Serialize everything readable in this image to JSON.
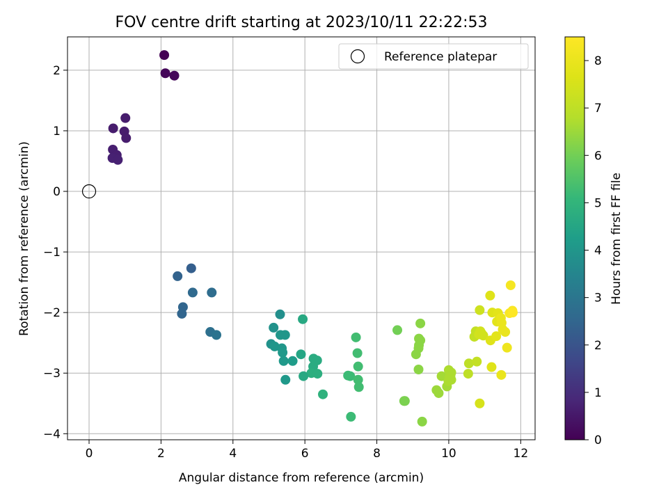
{
  "chart_data": {
    "type": "scatter",
    "title": "FOV centre drift starting at 2023/10/11 22:22:53",
    "xlabel": "Angular distance from reference (arcmin)",
    "ylabel": "Rotation from reference (arcmin)",
    "xlim": [
      -0.6,
      12.4
    ],
    "ylim": [
      -4.1,
      2.55
    ],
    "x_ticks": [
      0,
      2,
      4,
      6,
      8,
      10,
      12
    ],
    "y_ticks": [
      -4,
      -3,
      -2,
      -1,
      0,
      1,
      2
    ],
    "grid": true,
    "legend": {
      "placement": "top-right",
      "entries": [
        "Reference platepar"
      ]
    },
    "reference_point": {
      "x": 0,
      "y": 0
    },
    "colorbar": {
      "label": "Hours from first FF file",
      "colormap": "viridis",
      "range": [
        0,
        8.5
      ],
      "ticks": [
        0,
        1,
        2,
        3,
        4,
        5,
        6,
        7,
        8
      ]
    },
    "points": [
      {
        "x": 2.09,
        "y": 2.25,
        "h": 0.0
      },
      {
        "x": 2.12,
        "y": 1.95,
        "h": 0.1
      },
      {
        "x": 2.37,
        "y": 1.91,
        "h": 0.15
      },
      {
        "x": 1.01,
        "y": 1.21,
        "h": 0.6
      },
      {
        "x": 0.67,
        "y": 1.04,
        "h": 0.6
      },
      {
        "x": 0.98,
        "y": 0.99,
        "h": 0.6
      },
      {
        "x": 1.03,
        "y": 0.88,
        "h": 0.6
      },
      {
        "x": 0.66,
        "y": 0.69,
        "h": 0.65
      },
      {
        "x": 0.77,
        "y": 0.6,
        "h": 0.65
      },
      {
        "x": 0.65,
        "y": 0.55,
        "h": 0.7
      },
      {
        "x": 0.8,
        "y": 0.52,
        "h": 0.7
      },
      {
        "x": 2.84,
        "y": -1.27,
        "h": 2.3
      },
      {
        "x": 2.46,
        "y": -1.4,
        "h": 2.4
      },
      {
        "x": 2.88,
        "y": -1.67,
        "h": 2.6
      },
      {
        "x": 3.41,
        "y": -1.67,
        "h": 2.7
      },
      {
        "x": 2.61,
        "y": -1.91,
        "h": 2.5
      },
      {
        "x": 2.58,
        "y": -2.02,
        "h": 2.5
      },
      {
        "x": 3.37,
        "y": -2.32,
        "h": 2.8
      },
      {
        "x": 3.54,
        "y": -2.37,
        "h": 2.9
      },
      {
        "x": 5.31,
        "y": -2.03,
        "h": 3.8
      },
      {
        "x": 5.13,
        "y": -2.25,
        "h": 3.9
      },
      {
        "x": 5.32,
        "y": -2.37,
        "h": 4.0
      },
      {
        "x": 5.45,
        "y": -2.37,
        "h": 4.0
      },
      {
        "x": 5.06,
        "y": -2.52,
        "h": 3.9
      },
      {
        "x": 5.16,
        "y": -2.56,
        "h": 4.0
      },
      {
        "x": 5.36,
        "y": -2.59,
        "h": 4.0
      },
      {
        "x": 5.38,
        "y": -2.66,
        "h": 4.1
      },
      {
        "x": 5.41,
        "y": -2.8,
        "h": 4.1
      },
      {
        "x": 5.66,
        "y": -2.8,
        "h": 4.2
      },
      {
        "x": 5.46,
        "y": -3.11,
        "h": 4.1
      },
      {
        "x": 5.94,
        "y": -2.11,
        "h": 4.6
      },
      {
        "x": 5.89,
        "y": -2.69,
        "h": 4.5
      },
      {
        "x": 6.24,
        "y": -2.76,
        "h": 4.7
      },
      {
        "x": 6.34,
        "y": -2.79,
        "h": 4.7
      },
      {
        "x": 6.23,
        "y": -2.89,
        "h": 4.7
      },
      {
        "x": 6.18,
        "y": -3.0,
        "h": 4.8
      },
      {
        "x": 6.35,
        "y": -3.01,
        "h": 4.8
      },
      {
        "x": 5.96,
        "y": -3.05,
        "h": 4.6
      },
      {
        "x": 6.5,
        "y": -3.35,
        "h": 4.9
      },
      {
        "x": 7.42,
        "y": -2.41,
        "h": 5.3
      },
      {
        "x": 7.46,
        "y": -2.67,
        "h": 5.3
      },
      {
        "x": 7.48,
        "y": -2.89,
        "h": 5.3
      },
      {
        "x": 7.2,
        "y": -3.04,
        "h": 5.2
      },
      {
        "x": 7.26,
        "y": -3.05,
        "h": 5.2
      },
      {
        "x": 7.48,
        "y": -3.11,
        "h": 5.3
      },
      {
        "x": 7.5,
        "y": -3.23,
        "h": 5.3
      },
      {
        "x": 7.28,
        "y": -3.72,
        "h": 5.2
      },
      {
        "x": 8.57,
        "y": -2.29,
        "h": 6.0
      },
      {
        "x": 9.21,
        "y": -2.18,
        "h": 6.3
      },
      {
        "x": 9.17,
        "y": -2.43,
        "h": 6.3
      },
      {
        "x": 9.21,
        "y": -2.46,
        "h": 6.3
      },
      {
        "x": 9.17,
        "y": -2.54,
        "h": 6.3
      },
      {
        "x": 9.16,
        "y": -2.59,
        "h": 6.3
      },
      {
        "x": 9.09,
        "y": -2.69,
        "h": 6.3
      },
      {
        "x": 9.16,
        "y": -2.94,
        "h": 6.3
      },
      {
        "x": 8.76,
        "y": -3.46,
        "h": 6.1
      },
      {
        "x": 8.78,
        "y": -3.46,
        "h": 6.1
      },
      {
        "x": 9.26,
        "y": -3.8,
        "h": 6.3
      },
      {
        "x": 9.8,
        "y": -3.05,
        "h": 6.6
      },
      {
        "x": 9.66,
        "y": -3.28,
        "h": 6.5
      },
      {
        "x": 9.72,
        "y": -3.33,
        "h": 6.5
      },
      {
        "x": 9.95,
        "y": -3.22,
        "h": 6.6
      },
      {
        "x": 10.0,
        "y": -2.95,
        "h": 6.7
      },
      {
        "x": 10.07,
        "y": -2.99,
        "h": 6.7
      },
      {
        "x": 10.05,
        "y": -3.04,
        "h": 6.7
      },
      {
        "x": 10.02,
        "y": -3.07,
        "h": 6.7
      },
      {
        "x": 10.07,
        "y": -3.11,
        "h": 6.7
      },
      {
        "x": 9.99,
        "y": -3.13,
        "h": 6.7
      },
      {
        "x": 10.56,
        "y": -2.84,
        "h": 7.0
      },
      {
        "x": 10.54,
        "y": -3.01,
        "h": 7.0
      },
      {
        "x": 10.75,
        "y": -2.31,
        "h": 7.1
      },
      {
        "x": 10.71,
        "y": -2.4,
        "h": 7.1
      },
      {
        "x": 10.78,
        "y": -2.81,
        "h": 7.1
      },
      {
        "x": 10.86,
        "y": -1.96,
        "h": 7.3
      },
      {
        "x": 10.88,
        "y": -2.31,
        "h": 7.4
      },
      {
        "x": 10.92,
        "y": -2.35,
        "h": 7.4
      },
      {
        "x": 10.84,
        "y": -2.36,
        "h": 7.4
      },
      {
        "x": 10.96,
        "y": -2.38,
        "h": 7.4
      },
      {
        "x": 10.86,
        "y": -3.5,
        "h": 7.5
      },
      {
        "x": 11.15,
        "y": -1.72,
        "h": 7.7
      },
      {
        "x": 11.21,
        "y": -2.0,
        "h": 7.7
      },
      {
        "x": 11.37,
        "y": -2.01,
        "h": 7.8
      },
      {
        "x": 11.34,
        "y": -2.15,
        "h": 7.8
      },
      {
        "x": 11.16,
        "y": -2.46,
        "h": 7.7
      },
      {
        "x": 11.32,
        "y": -2.39,
        "h": 7.8
      },
      {
        "x": 11.19,
        "y": -2.9,
        "h": 7.7
      },
      {
        "x": 11.45,
        "y": -2.09,
        "h": 8.0
      },
      {
        "x": 11.47,
        "y": -2.17,
        "h": 8.0
      },
      {
        "x": 11.5,
        "y": -2.28,
        "h": 8.0
      },
      {
        "x": 11.57,
        "y": -2.32,
        "h": 8.0
      },
      {
        "x": 11.46,
        "y": -3.03,
        "h": 8.0
      },
      {
        "x": 11.62,
        "y": -2.58,
        "h": 8.1
      },
      {
        "x": 11.72,
        "y": -1.55,
        "h": 8.3
      },
      {
        "x": 11.69,
        "y": -2.01,
        "h": 8.4
      },
      {
        "x": 11.77,
        "y": -1.97,
        "h": 8.4
      },
      {
        "x": 11.78,
        "y": -2.0,
        "h": 8.5
      }
    ]
  }
}
